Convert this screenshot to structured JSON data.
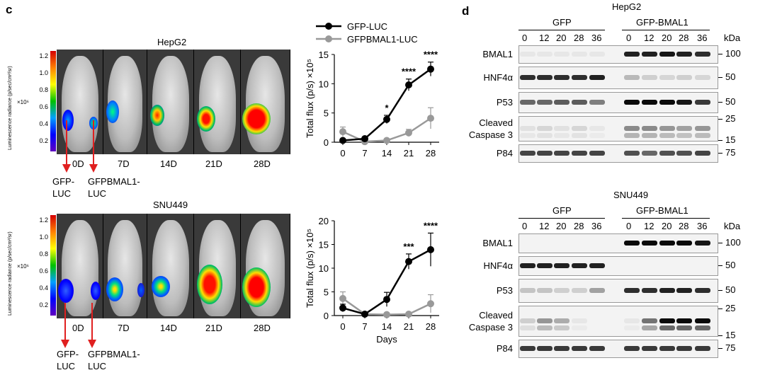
{
  "panel_c": {
    "letter": "c",
    "hepg2": {
      "title": "HepG2",
      "colorbar_title": "Luminescence radiance (p/sec/cm²/sr)",
      "colorbar_scale": "×10⁶",
      "colorbar_ticks": [
        "1.2",
        "1.0",
        "0.8",
        "0.6",
        "0.4",
        "0.2"
      ],
      "days": [
        "0D",
        "7D",
        "14D",
        "21D",
        "28D"
      ],
      "arrow_labels": [
        "GFP-\nLUC",
        "GFPBMAL1-\nLUC"
      ]
    },
    "snu449": {
      "title": "SNU449",
      "colorbar_title": "Luminescence radiance (p/sec/cm²/sr)",
      "colorbar_scale": "×10⁶",
      "colorbar_ticks": [
        "1.2",
        "1.0",
        "0.8",
        "0.6",
        "0.4",
        "0.2"
      ],
      "days": [
        "0D",
        "7D",
        "14D",
        "21D",
        "28D"
      ],
      "arrow_labels": [
        "GFP-\nLUC",
        "GFPBMAL1-\nLUC"
      ]
    }
  },
  "chart_data": [
    {
      "type": "line",
      "title": "",
      "legend": [
        "GFP-LUC",
        "GFPBMAL1-LUC"
      ],
      "xlabel": "",
      "ylabel": "Total flux (p/s) ×10⁵",
      "x": [
        0,
        7,
        14,
        21,
        28
      ],
      "ylim": [
        0,
        15
      ],
      "yticks": [
        0,
        5,
        10,
        15
      ],
      "series": [
        {
          "name": "GFP-LUC",
          "color": "#000000",
          "values": [
            0.3,
            0.6,
            3.9,
            9.8,
            12.5
          ],
          "err": [
            0.2,
            0.3,
            0.7,
            1.0,
            1.2
          ]
        },
        {
          "name": "GFPBMAL1-LUC",
          "color": "#999999",
          "values": [
            1.8,
            0.1,
            0.3,
            1.6,
            4.1
          ],
          "err": [
            0.8,
            0.2,
            0.2,
            0.6,
            1.8
          ]
        }
      ],
      "annotations": [
        {
          "x": 14,
          "text": "*"
        },
        {
          "x": 21,
          "text": "****"
        },
        {
          "x": 28,
          "text": "****"
        }
      ]
    },
    {
      "type": "line",
      "title": "",
      "xlabel": "Days",
      "ylabel": "Total flux (p/s) ×10⁵",
      "x": [
        0,
        7,
        14,
        21,
        28
      ],
      "ylim": [
        0,
        20
      ],
      "yticks": [
        0,
        5,
        10,
        15,
        20
      ],
      "series": [
        {
          "name": "GFP-LUC",
          "color": "#000000",
          "values": [
            1.6,
            0.3,
            3.4,
            11.4,
            13.9
          ],
          "err": [
            0.8,
            0.2,
            1.5,
            1.6,
            3.5
          ]
        },
        {
          "name": "GFPBMAL1-LUC",
          "color": "#999999",
          "values": [
            3.6,
            0.3,
            0.2,
            0.3,
            2.5
          ],
          "err": [
            1.4,
            0.2,
            0.2,
            0.2,
            1.9
          ]
        }
      ],
      "annotations": [
        {
          "x": 21,
          "text": "***"
        },
        {
          "x": 28,
          "text": "****"
        }
      ]
    }
  ],
  "panel_d": {
    "letter": "d",
    "kda_label": "kDa",
    "hepg2": {
      "title": "HepG2",
      "groups": [
        "GFP",
        "GFP-BMAL1"
      ],
      "lanes": [
        "0",
        "12",
        "20",
        "28",
        "36",
        "0",
        "12",
        "20",
        "28",
        "36"
      ],
      "rows": [
        {
          "label": "BMAL1",
          "markers": [
            "100"
          ]
        },
        {
          "label": "HNF4α",
          "markers": [
            "50"
          ]
        },
        {
          "label": "P53",
          "markers": [
            "50"
          ]
        },
        {
          "label": "Cleaved\nCaspase 3",
          "markers": [
            "25",
            "15"
          ]
        },
        {
          "label": "P84",
          "markers": [
            "75"
          ]
        }
      ]
    },
    "snu449": {
      "title": "SNU449",
      "groups": [
        "GFP",
        "GFP-BMAL1"
      ],
      "lanes": [
        "0",
        "12",
        "20",
        "28",
        "36",
        "0",
        "12",
        "20",
        "28",
        "36"
      ],
      "rows": [
        {
          "label": "BMAL1",
          "markers": [
            "100"
          ]
        },
        {
          "label": "HNF4α",
          "markers": [
            "50"
          ]
        },
        {
          "label": "P53",
          "markers": [
            "50"
          ]
        },
        {
          "label": "Cleaved\nCaspase 3",
          "markers": [
            "25",
            "15"
          ]
        },
        {
          "label": "P84",
          "markers": [
            "75"
          ]
        }
      ]
    }
  }
}
